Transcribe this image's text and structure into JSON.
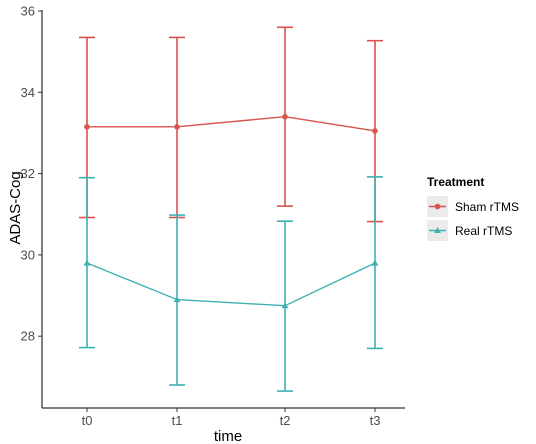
{
  "chart_data": {
    "type": "line",
    "title": "",
    "xlabel": "time",
    "ylabel": "ADAS-Cog",
    "categories": [
      "t0",
      "t1",
      "t2",
      "t3"
    ],
    "ylim": [
      26,
      36
    ],
    "yticks": [
      28,
      30,
      32,
      34,
      36
    ],
    "grid": false,
    "legend": {
      "title": "Treatment",
      "position": "right"
    },
    "series": [
      {
        "name": "Sham rTMS",
        "color": "#d9534f",
        "marker": "circle",
        "values": [
          33.15,
          33.15,
          33.4,
          33.05
        ],
        "lower": [
          30.92,
          30.92,
          31.2,
          30.82
        ],
        "upper": [
          35.35,
          35.35,
          35.6,
          35.27
        ]
      },
      {
        "name": "Real rTMS",
        "color": "#3fb1b3",
        "marker": "triangle",
        "values": [
          29.8,
          28.9,
          28.75,
          29.8
        ],
        "lower": [
          27.72,
          26.8,
          26.65,
          27.7
        ],
        "upper": [
          31.9,
          30.98,
          30.83,
          31.92
        ]
      }
    ]
  }
}
